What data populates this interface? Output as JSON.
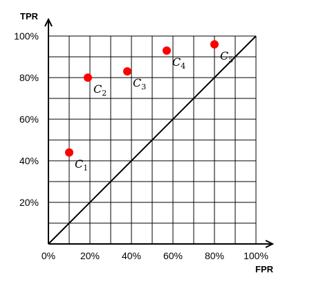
{
  "chart_data": {
    "type": "scatter",
    "title": "",
    "xlabel": "FPR",
    "ylabel": "TPR",
    "xlim": [
      0,
      100
    ],
    "ylim": [
      0,
      100
    ],
    "x_ticks": [
      0,
      20,
      40,
      60,
      80,
      100
    ],
    "y_ticks": [
      20,
      40,
      60,
      80,
      100
    ],
    "x_tick_labels": [
      "0%",
      "20%",
      "40%",
      "60%",
      "80%",
      "100%"
    ],
    "y_tick_labels": [
      "20%",
      "40%",
      "60%",
      "80%",
      "100%"
    ],
    "grid": true,
    "diagonal_reference": true,
    "point_color": "#ff0000",
    "points": [
      {
        "name": "C",
        "sub": "1",
        "x": 10,
        "y": 44
      },
      {
        "name": "C",
        "sub": "2",
        "x": 19,
        "y": 80
      },
      {
        "name": "C",
        "sub": "3",
        "x": 38,
        "y": 83
      },
      {
        "name": "C",
        "sub": "4",
        "x": 57,
        "y": 93
      },
      {
        "name": "C",
        "sub": "5",
        "x": 80,
        "y": 96
      }
    ]
  }
}
